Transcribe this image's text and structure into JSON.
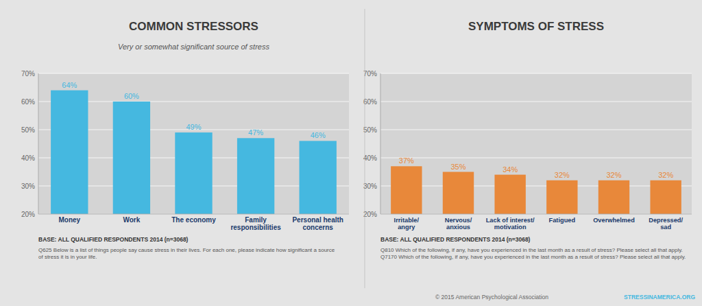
{
  "chart_data": [
    {
      "type": "bar",
      "title": "COMMON STRESSORS",
      "subtitle": "Very or somewhat significant source of stress",
      "categories": [
        "Money",
        "Work",
        "The economy",
        "Family\nresponsibilities",
        "Personal health\nconcerns"
      ],
      "values": [
        64,
        60,
        49,
        47,
        46
      ],
      "value_labels": [
        "64%",
        "60%",
        "49%",
        "47%",
        "46%"
      ],
      "color": "#45b8e0",
      "ylim": [
        20,
        70
      ],
      "yticks": [
        {
          "value": 20,
          "label": "20%"
        },
        {
          "value": 30,
          "label": "30%"
        },
        {
          "value": 40,
          "label": "40%"
        },
        {
          "value": 50,
          "label": "50%"
        },
        {
          "value": 60,
          "label": "60%"
        },
        {
          "value": 70,
          "label": "70%"
        }
      ],
      "grid": true,
      "data_labels": true,
      "annotations": [
        "BASE: ALL QUALIFIED RESPONDENTS 2014 (n=3068)",
        "Q625  Below is a list of things people say cause stress in their lives. For each one, please indicate how significant a source\nof stress it is in your life."
      ]
    },
    {
      "type": "bar",
      "title": "SYMPTOMS OF STRESS",
      "categories": [
        "Irritable/\nangry",
        "Nervous/\nanxious",
        "Lack of interest/\nmotivation",
        "Fatigued",
        "Overwhelmed",
        "Depressed/\nsad"
      ],
      "values": [
        37,
        35,
        34,
        32,
        32,
        32
      ],
      "value_labels": [
        "37%",
        "35%",
        "34%",
        "32%",
        "32%",
        "32%"
      ],
      "color": "#e8883a",
      "ylim": [
        20,
        70
      ],
      "yticks": [
        {
          "value": 20,
          "label": "20%"
        },
        {
          "value": 30,
          "label": "30%"
        },
        {
          "value": 40,
          "label": "40%"
        },
        {
          "value": 50,
          "label": "50%"
        },
        {
          "value": 60,
          "label": "60%"
        },
        {
          "value": 70,
          "label": "70%"
        }
      ],
      "grid": true,
      "data_labels": true,
      "annotations": [
        "BASE: ALL QUALIFIED RESPONDENTS 2014 (n=3068)",
        "Q810  Which of the following, if any, have you experienced in the last month as a result of stress? Please select all that apply.\nQ7170  Which of the following, if any, have you experienced in the last month as a result of stress? Please select all that apply.",
        "© 2015 American Psychological Association",
        "STRESSINAMERICA.ORG"
      ]
    }
  ]
}
